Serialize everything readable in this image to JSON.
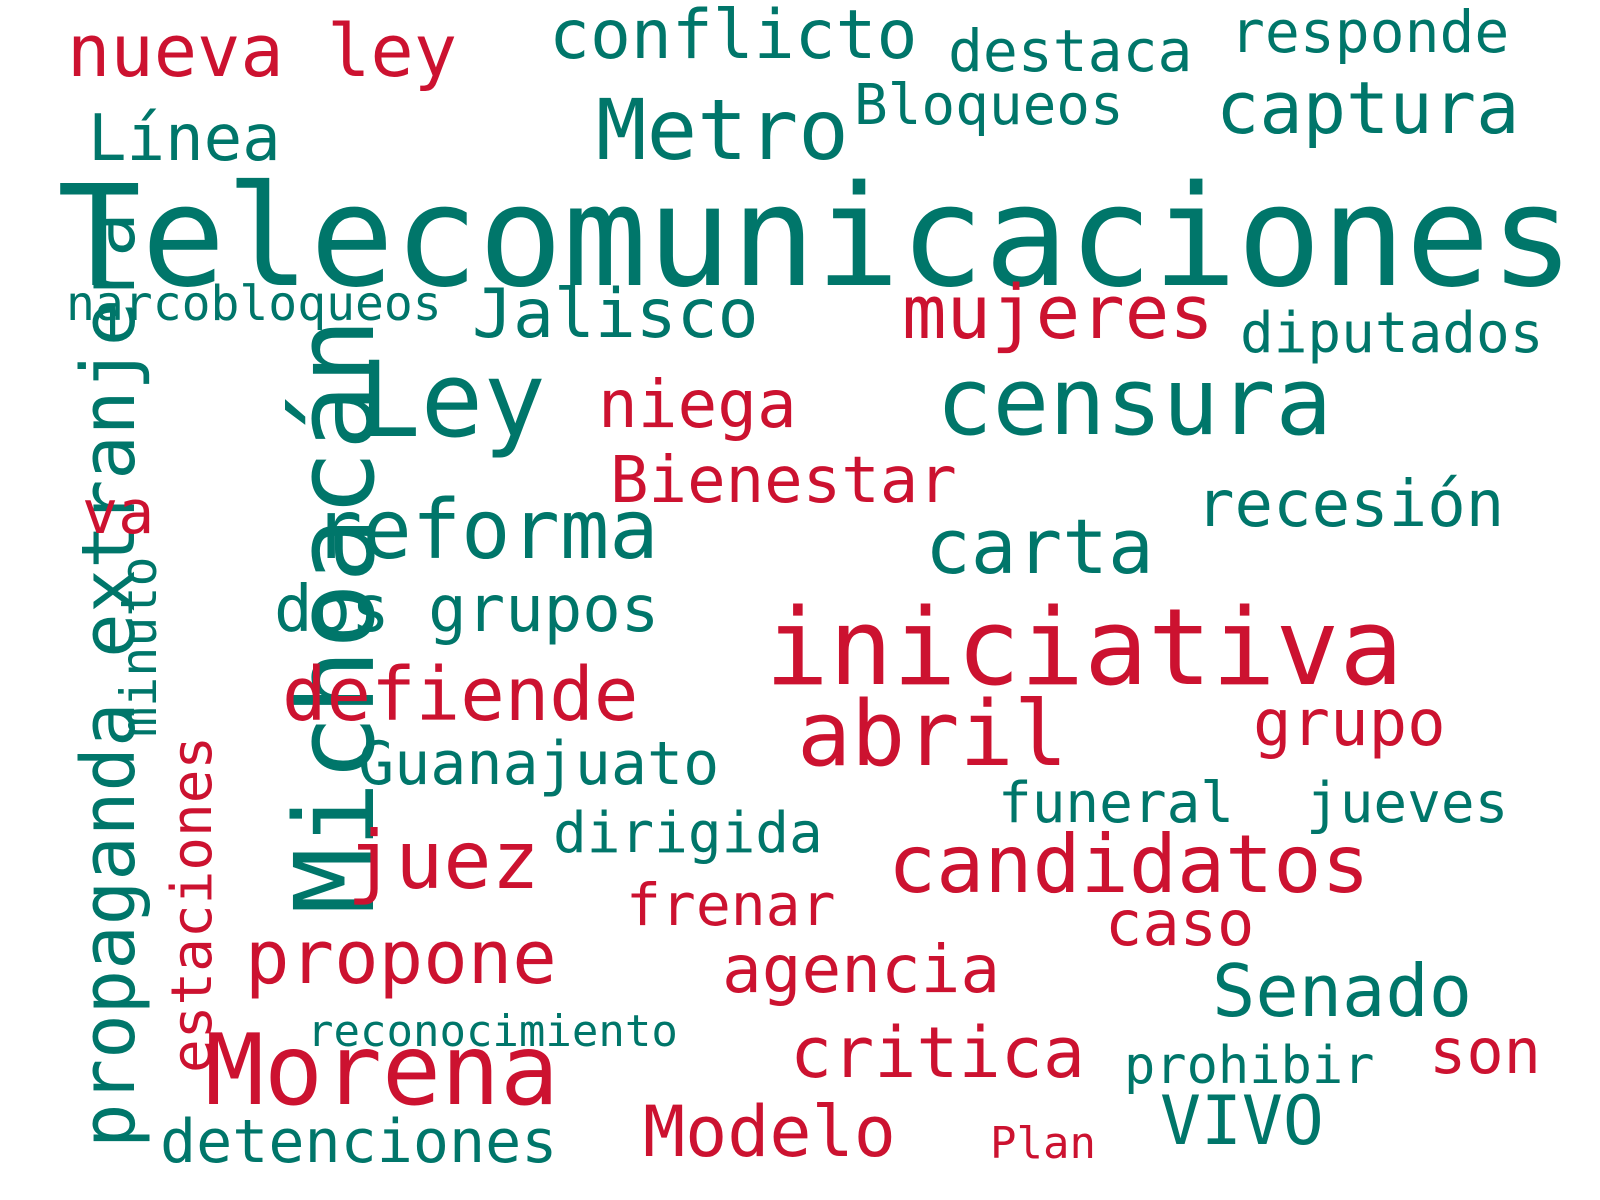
{
  "palette": {
    "teal": "#00766a",
    "red": "#cc1230"
  },
  "words": [
    {
      "text": "Telecomunicaciones",
      "color": "teal",
      "weight": 140,
      "vertical": false
    },
    {
      "text": "Michoacán",
      "color": "teal",
      "weight": 110,
      "vertical": true
    },
    {
      "text": "iniciativa",
      "color": "red",
      "weight": 106,
      "vertical": false
    },
    {
      "text": "Ley",
      "color": "teal",
      "weight": 104,
      "vertical": false
    },
    {
      "text": "Morena",
      "color": "red",
      "weight": 98,
      "vertical": false
    },
    {
      "text": "censura",
      "color": "teal",
      "weight": 94,
      "vertical": false
    },
    {
      "text": "abril",
      "color": "red",
      "weight": 90,
      "vertical": false
    },
    {
      "text": "Metro",
      "color": "teal",
      "weight": 84,
      "vertical": false
    },
    {
      "text": "reforma",
      "color": "teal",
      "weight": 82,
      "vertical": false
    },
    {
      "text": "candidatos",
      "color": "red",
      "weight": 80,
      "vertical": false
    },
    {
      "text": "juez",
      "color": "red",
      "weight": 80,
      "vertical": false
    },
    {
      "text": "carta",
      "color": "teal",
      "weight": 76,
      "vertical": false
    },
    {
      "text": "propaganda extranjera",
      "color": "teal",
      "weight": 74,
      "vertical": true
    },
    {
      "text": "defiende",
      "color": "red",
      "weight": 74,
      "vertical": false
    },
    {
      "text": "mujeres",
      "color": "red",
      "weight": 74,
      "vertical": false
    },
    {
      "text": "propone",
      "color": "red",
      "weight": 74,
      "vertical": false
    },
    {
      "text": "nueva ley",
      "color": "red",
      "weight": 72,
      "vertical": false
    },
    {
      "text": "Senado",
      "color": "teal",
      "weight": 72,
      "vertical": false
    },
    {
      "text": "captura",
      "color": "teal",
      "weight": 72,
      "vertical": false
    },
    {
      "text": "Modelo",
      "color": "red",
      "weight": 70,
      "vertical": false
    },
    {
      "text": "critica",
      "color": "red",
      "weight": 70,
      "vertical": false
    },
    {
      "text": "conflicto",
      "color": "teal",
      "weight": 68,
      "vertical": false
    },
    {
      "text": "Jalisco",
      "color": "teal",
      "weight": 68,
      "vertical": false
    },
    {
      "text": "VIVO",
      "color": "teal",
      "weight": 68,
      "vertical": false
    },
    {
      "text": "agencia",
      "color": "red",
      "weight": 66,
      "vertical": false
    },
    {
      "text": "niega",
      "color": "red",
      "weight": 66,
      "vertical": false
    },
    {
      "text": "Bienestar",
      "color": "red",
      "weight": 64,
      "vertical": false
    },
    {
      "text": "recesión",
      "color": "teal",
      "weight": 64,
      "vertical": false
    },
    {
      "text": "dos grupos",
      "color": "teal",
      "weight": 64,
      "vertical": false
    },
    {
      "text": "grupo",
      "color": "red",
      "weight": 64,
      "vertical": false
    },
    {
      "text": "Línea",
      "color": "teal",
      "weight": 64,
      "vertical": false
    },
    {
      "text": "caso",
      "color": "red",
      "weight": 62,
      "vertical": false
    },
    {
      "text": "son",
      "color": "red",
      "weight": 62,
      "vertical": false
    },
    {
      "text": "va",
      "color": "red",
      "weight": 60,
      "vertical": false
    },
    {
      "text": "Guanajuato",
      "color": "teal",
      "weight": 60,
      "vertical": false
    },
    {
      "text": "detenciones",
      "color": "teal",
      "weight": 60,
      "vertical": false
    },
    {
      "text": "responde",
      "color": "teal",
      "weight": 58,
      "vertical": false
    },
    {
      "text": "destaca",
      "color": "teal",
      "weight": 58,
      "vertical": false
    },
    {
      "text": "frenar",
      "color": "red",
      "weight": 58,
      "vertical": false
    },
    {
      "text": "Bloqueos",
      "color": "teal",
      "weight": 56,
      "vertical": false
    },
    {
      "text": "estaciones",
      "color": "red",
      "weight": 56,
      "vertical": true
    },
    {
      "text": "diputados",
      "color": "teal",
      "weight": 56,
      "vertical": false
    },
    {
      "text": "funeral",
      "color": "teal",
      "weight": 56,
      "vertical": false
    },
    {
      "text": "jueves",
      "color": "teal",
      "weight": 56,
      "vertical": false
    },
    {
      "text": "dirigida",
      "color": "teal",
      "weight": 56,
      "vertical": false
    },
    {
      "text": "prohibir",
      "color": "teal",
      "weight": 52,
      "vertical": false
    },
    {
      "text": "minuto",
      "color": "teal",
      "weight": 50,
      "vertical": true
    },
    {
      "text": "narcobloqueos",
      "color": "teal",
      "weight": 48,
      "vertical": false
    },
    {
      "text": "Plan",
      "color": "red",
      "weight": 44,
      "vertical": false
    },
    {
      "text": "reconocimiento",
      "color": "teal",
      "weight": 44,
      "vertical": false
    }
  ]
}
